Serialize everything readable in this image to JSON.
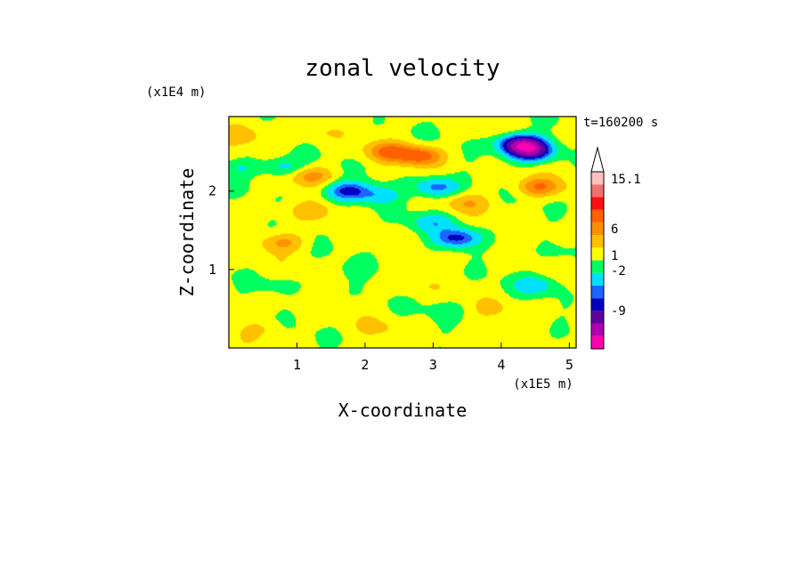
{
  "chart_data": {
    "type": "heatmap",
    "title": "zonal velocity",
    "xlabel": "X-coordinate",
    "ylabel": "Z-coordinate",
    "x_unit": "(x1E5 m)",
    "y_unit": "(x1E4 m)",
    "time_label": "t=160200 s",
    "x_ticks": [
      "1",
      "2",
      "3",
      "4",
      "5"
    ],
    "y_ticks": [
      "1",
      "2"
    ],
    "xlim": [
      0,
      5.1
    ],
    "ylim": [
      0,
      2.95
    ],
    "colorbar": {
      "tick_labels": [
        "15.1",
        "6",
        "1",
        "-2",
        "-9"
      ],
      "levels": [
        {
          "color": "#ff00b0"
        },
        {
          "color": "#b000b0"
        },
        {
          "color": "#6000a0"
        },
        {
          "color": "#0000c0"
        },
        {
          "color": "#1e64ff"
        },
        {
          "color": "#00e0ff"
        },
        {
          "color": "#00ff60"
        },
        {
          "color": "#ffff00"
        },
        {
          "color": "#ffc000"
        },
        {
          "color": "#ff9000"
        },
        {
          "color": "#ff6000"
        },
        {
          "color": "#ff1010"
        },
        {
          "color": "#f07070"
        },
        {
          "color": "#ffc0c0"
        }
      ]
    },
    "grid": false
  },
  "field_features": [
    {
      "x": 4.3,
      "z": 2.6,
      "v": -11
    },
    {
      "x": 4.45,
      "z": 2.5,
      "v": -8
    },
    {
      "x": 1.75,
      "z": 2.0,
      "v": -6
    },
    {
      "x": 3.35,
      "z": 1.4,
      "v": -6
    },
    {
      "x": 3.05,
      "z": 2.05,
      "v": -5
    },
    {
      "x": 0.8,
      "z": 2.3,
      "v": -3
    },
    {
      "x": 2.2,
      "z": 1.95,
      "v": -3
    },
    {
      "x": 4.5,
      "z": 0.8,
      "v": -3
    },
    {
      "x": 3.0,
      "z": 1.6,
      "v": -3
    },
    {
      "x": 0.2,
      "z": 2.3,
      "v": -2
    },
    {
      "x": 2.8,
      "z": 2.45,
      "v": 5
    },
    {
      "x": 2.35,
      "z": 2.5,
      "v": 4
    },
    {
      "x": 4.55,
      "z": 2.05,
      "v": 4
    },
    {
      "x": 1.2,
      "z": 2.2,
      "v": 3
    },
    {
      "x": 0.8,
      "z": 1.35,
      "v": 3
    },
    {
      "x": 1.2,
      "z": 1.75,
      "v": 2
    },
    {
      "x": 3.5,
      "z": 1.85,
      "v": 2
    },
    {
      "x": 0.2,
      "z": 2.7,
      "v": 2
    },
    {
      "x": 2.2,
      "z": 0.25,
      "v": 1
    },
    {
      "x": 2.6,
      "z": 0.8,
      "v": 1
    },
    {
      "x": 0.5,
      "z": 0.25,
      "v": 1
    },
    {
      "x": 1.3,
      "z": 2.75,
      "v": 1
    },
    {
      "x": 3.9,
      "z": 0.5,
      "v": 1
    },
    {
      "x": 0.7,
      "z": 0.8,
      "v": -1
    },
    {
      "x": 1.9,
      "z": 1.0,
      "v": -1
    },
    {
      "x": 3.2,
      "z": 0.5,
      "v": -1
    },
    {
      "x": 4.8,
      "z": 1.2,
      "v": -1
    }
  ]
}
